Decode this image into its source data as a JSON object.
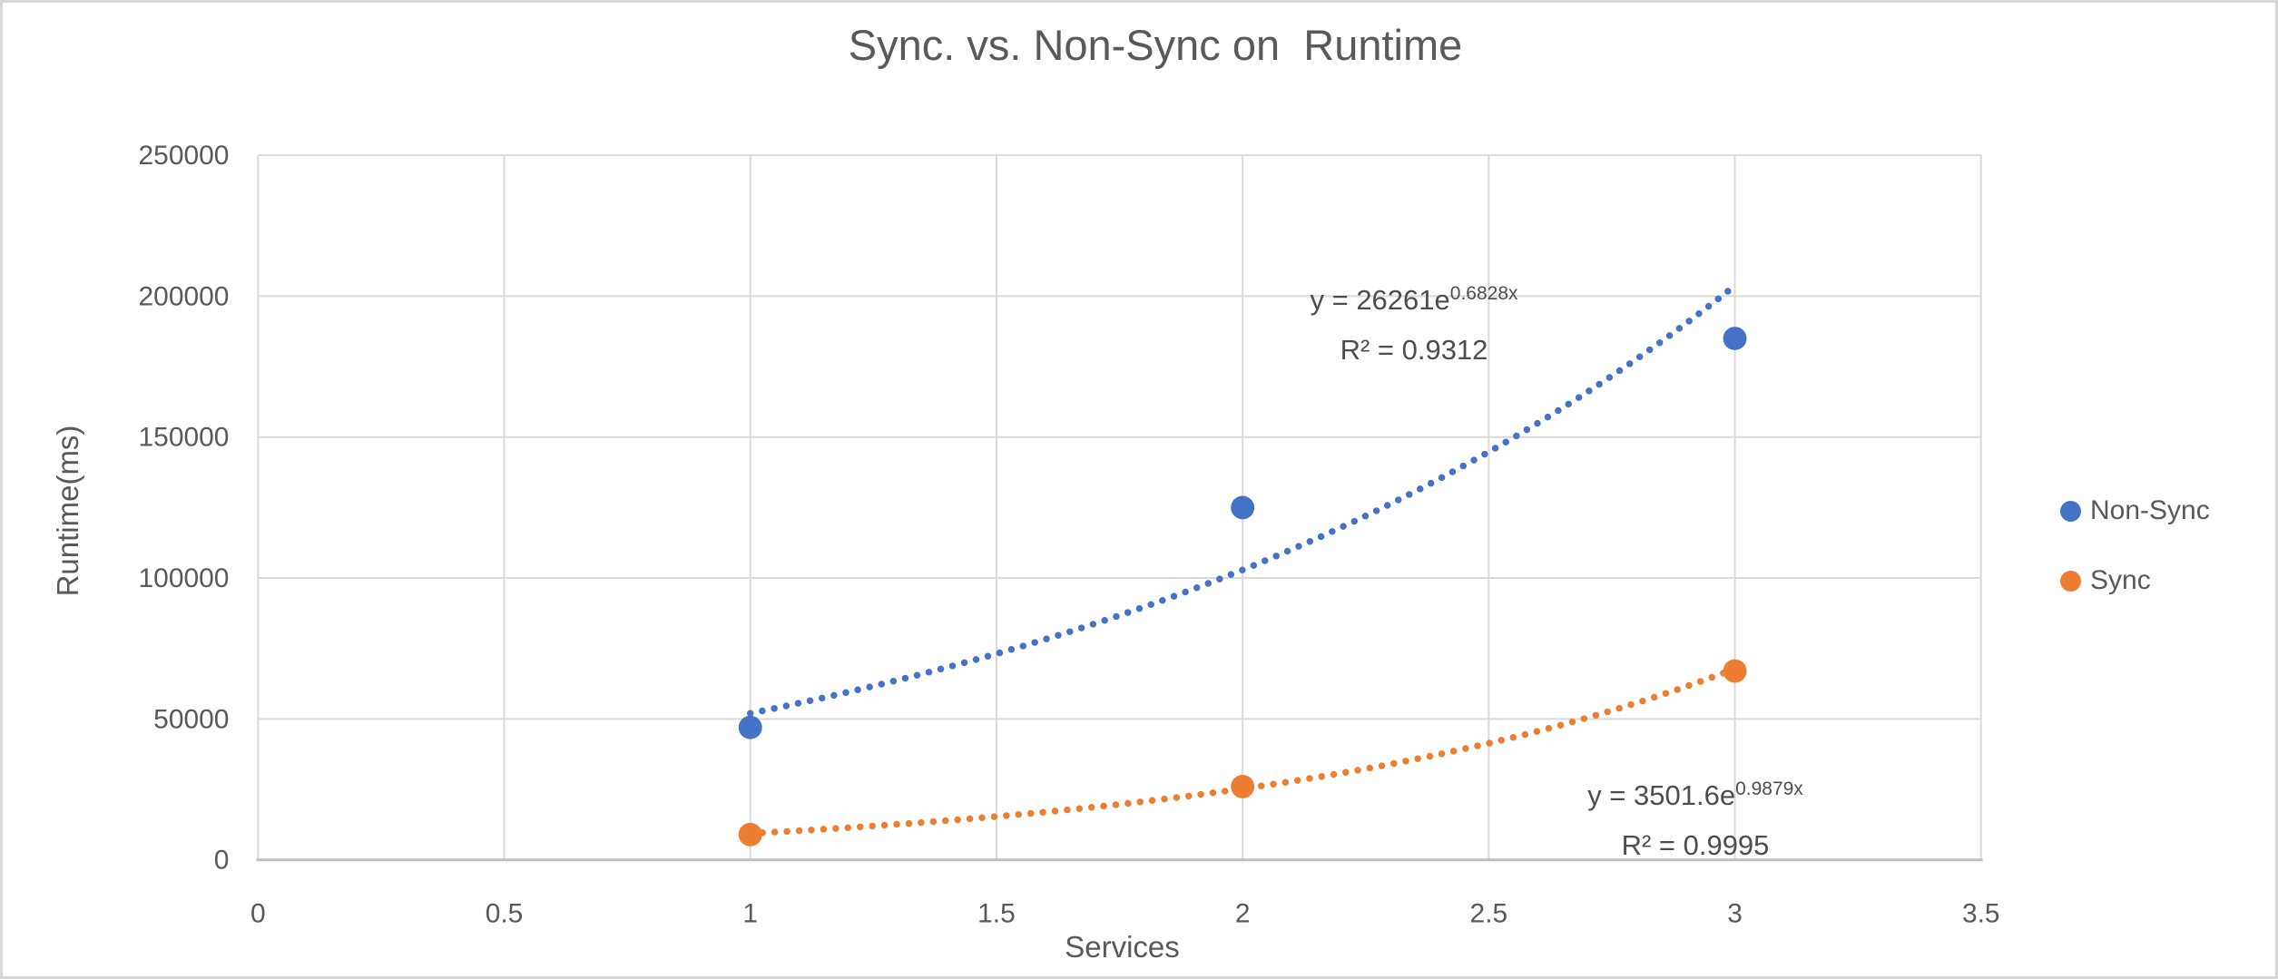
{
  "chart": {
    "title": "Sync. vs. Non-Sync on  Runtime",
    "x_axis_label": "Services",
    "y_axis_label": "Runtime(ms)"
  },
  "chart_data": {
    "type": "scatter",
    "title": "Sync. vs. Non-Sync on  Runtime",
    "xlabel": "Services",
    "ylabel": "Runtime(ms)",
    "xlim": [
      0,
      3.5
    ],
    "ylim": [
      0,
      250000
    ],
    "x_tick_step": 0.5,
    "y_tick_step": 50000,
    "x_tick_labels": [
      "0",
      "0.5",
      "1",
      "1.5",
      "2",
      "2.5",
      "3",
      "3.5"
    ],
    "y_tick_labels": [
      "0",
      "50000",
      "100000",
      "150000",
      "200000",
      "250000"
    ],
    "grid": true,
    "legend_position": "right",
    "x": [
      1,
      2,
      3
    ],
    "series": [
      {
        "name": "Non-Sync",
        "color": "#4472C4",
        "values": [
          47000,
          125000,
          185000
        ],
        "trendline": {
          "type": "exponential",
          "a": 26261,
          "b": 0.6828,
          "range_x": [
            1,
            3
          ],
          "label_base": "y = 26261e",
          "label_exponent": "0.6828x",
          "label_r2": "R² = 0.9312"
        }
      },
      {
        "name": "Sync",
        "color": "#ED7D31",
        "values": [
          9000,
          26000,
          67000
        ],
        "trendline": {
          "type": "exponential",
          "a": 3501.6,
          "b": 0.9879,
          "range_x": [
            1,
            3
          ],
          "label_base": "y = 3501.6e",
          "label_exponent": "0.9879x",
          "label_r2": "R² = 0.9995"
        }
      }
    ],
    "colors": {
      "text": "#595959",
      "gridline": "#D9D9D9",
      "axis_line": "#BFBFBF"
    }
  }
}
